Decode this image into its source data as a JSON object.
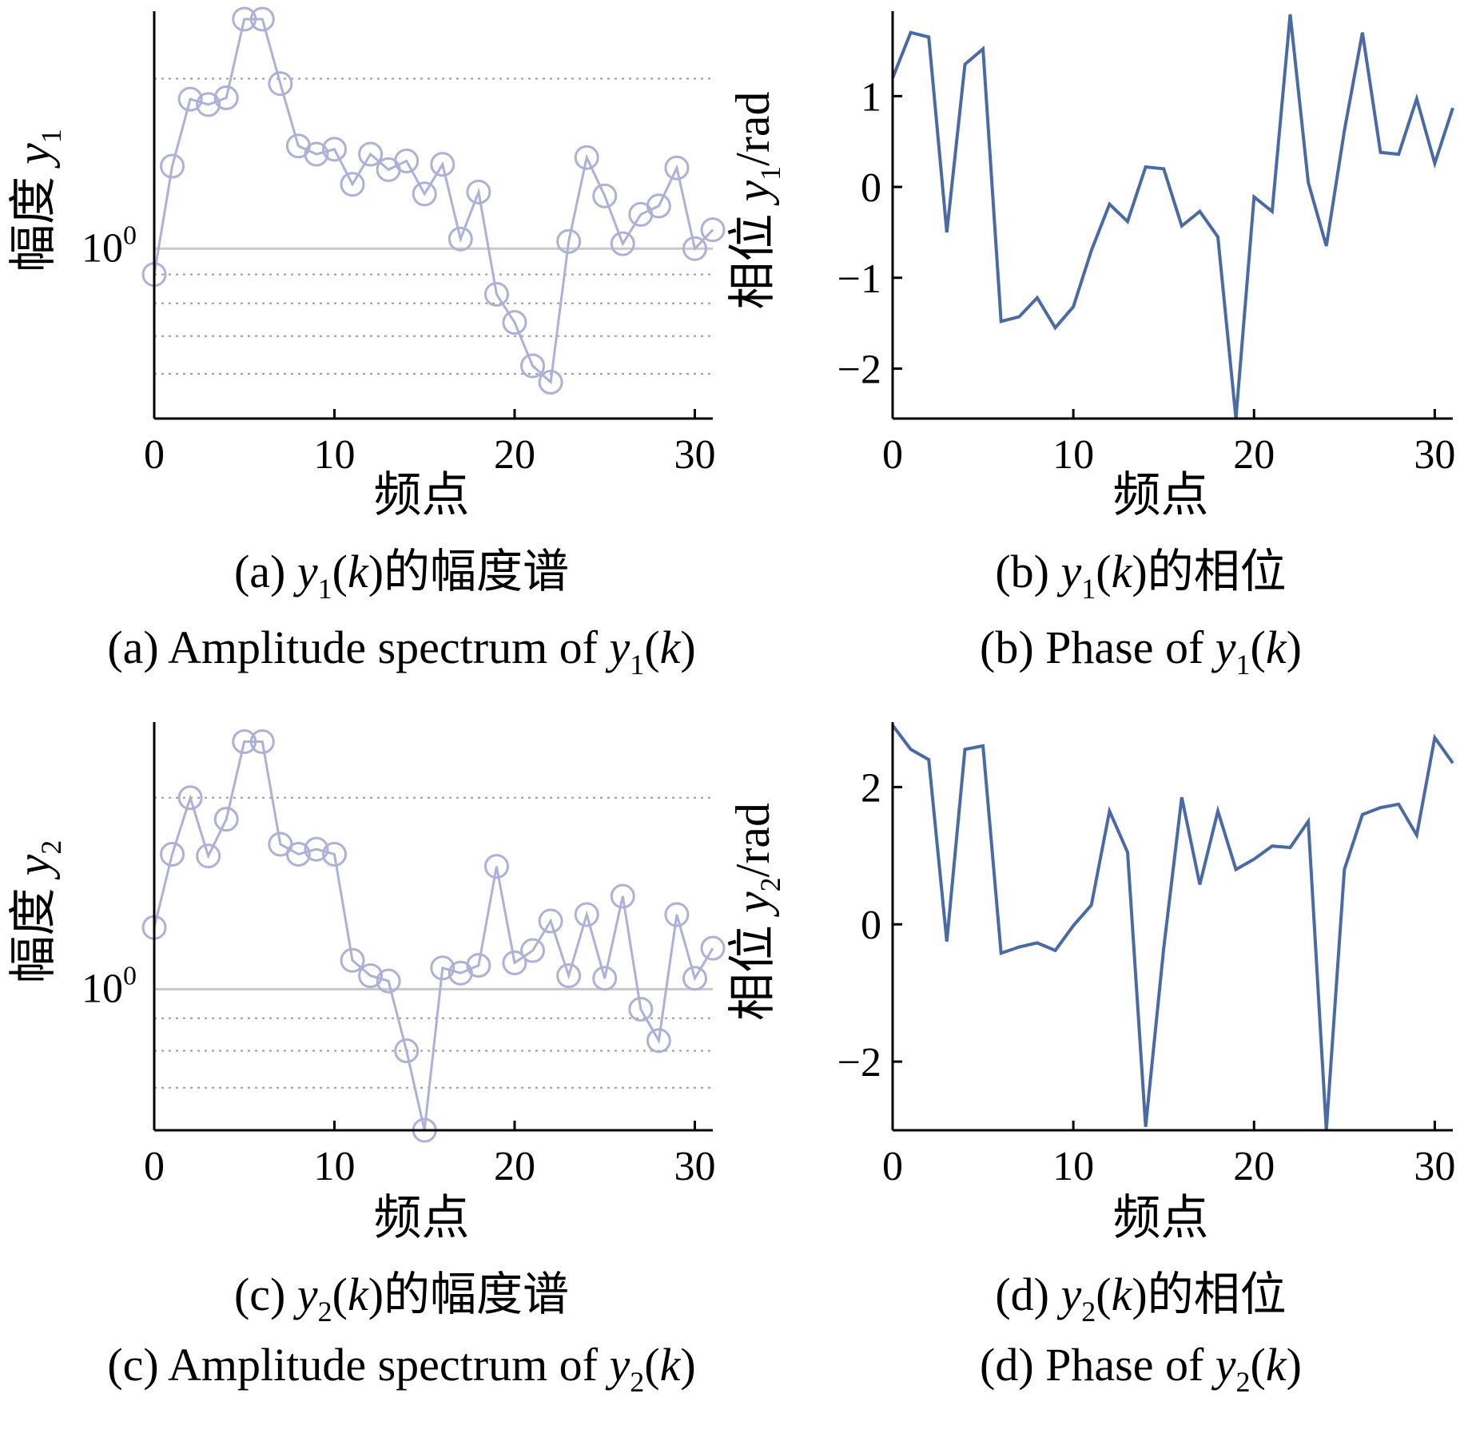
{
  "figure": {
    "panels": [
      {
        "id": "a",
        "caption_cn": {
          "prefix": "(a) ",
          "var": "y",
          "sub": "1",
          "arg": "(k)",
          "suffix": "的幅度谱"
        },
        "caption_en": {
          "prefix": "(a) Amplitude spectrum of ",
          "var": "y",
          "sub": "1",
          "arg": "(k)"
        },
        "ylabel": {
          "text": "幅度 ",
          "var": "y",
          "sub": "1",
          "unit": ""
        },
        "xlabel": "频点",
        "ytick_main": {
          "base": "10",
          "exp": "0"
        }
      },
      {
        "id": "b",
        "caption_cn": {
          "prefix": "(b) ",
          "var": "y",
          "sub": "1",
          "arg": "(k)",
          "suffix": "的相位"
        },
        "caption_en": {
          "prefix": "(b) Phase of ",
          "var": "y",
          "sub": "1",
          "arg": "(k)"
        },
        "ylabel": {
          "text": "相位 ",
          "var": "y",
          "sub": "1",
          "unit": "/rad"
        },
        "xlabel": "频点"
      },
      {
        "id": "c",
        "caption_cn": {
          "prefix": "(c) ",
          "var": "y",
          "sub": "2",
          "arg": "(k)",
          "suffix": "的幅度谱"
        },
        "caption_en": {
          "prefix": "(c) Amplitude spectrum of ",
          "var": "y",
          "sub": "2",
          "arg": "(k)"
        },
        "ylabel": {
          "text": "幅度 ",
          "var": "y",
          "sub": "2",
          "unit": ""
        },
        "xlabel": "频点",
        "ytick_main": {
          "base": "10",
          "exp": "0"
        }
      },
      {
        "id": "d",
        "caption_cn": {
          "prefix": "(d) ",
          "var": "y",
          "sub": "2",
          "arg": "(k)",
          "suffix": "的相位"
        },
        "caption_en": {
          "prefix": "(d) Phase of ",
          "var": "y",
          "sub": "2",
          "arg": "(k)"
        },
        "ylabel": {
          "text": "相位 ",
          "var": "y",
          "sub": "2",
          "unit": "/rad"
        },
        "xlabel": "频点"
      }
    ],
    "colors": {
      "amplitude": "#aeb0d8",
      "phase": "#4a6aa5",
      "grid": "#9a9a9a",
      "unity_line": "#c8c8c8",
      "axis": "#000000"
    }
  },
  "chart_data": [
    {
      "type": "line",
      "panel": "a",
      "marker": "circle",
      "yscale": "log",
      "xlim": [
        0,
        31
      ],
      "ylim": [
        0.5,
        2.6
      ],
      "xticks": [
        0,
        10,
        20,
        30
      ],
      "x": [
        0,
        1,
        2,
        3,
        4,
        5,
        6,
        7,
        8,
        9,
        10,
        11,
        12,
        13,
        14,
        15,
        16,
        17,
        18,
        19,
        20,
        21,
        22,
        23,
        24,
        25,
        26,
        27,
        28,
        29,
        30,
        31
      ],
      "values": [
        0.9,
        1.4,
        1.84,
        1.8,
        1.85,
        2.55,
        2.55,
        1.96,
        1.52,
        1.47,
        1.5,
        1.3,
        1.47,
        1.38,
        1.43,
        1.25,
        1.41,
        1.04,
        1.26,
        0.83,
        0.74,
        0.62,
        0.58,
        1.03,
        1.45,
        1.24,
        1.02,
        1.15,
        1.19,
        1.39,
        1.0,
        1.08
      ]
    },
    {
      "type": "line",
      "panel": "b",
      "xlim": [
        0,
        31
      ],
      "ylim": [
        -2.55,
        1.9
      ],
      "xticks": [
        0,
        10,
        20,
        30
      ],
      "yticks": [
        -2,
        -1,
        0,
        1
      ],
      "x": [
        0,
        1,
        2,
        3,
        4,
        5,
        6,
        7,
        8,
        9,
        10,
        11,
        12,
        13,
        14,
        15,
        16,
        17,
        18,
        19,
        20,
        21,
        22,
        23,
        24,
        25,
        26,
        27,
        28,
        29,
        30,
        31
      ],
      "values": [
        1.2,
        1.7,
        1.65,
        -0.5,
        1.35,
        1.52,
        -1.48,
        -1.43,
        -1.22,
        -1.55,
        -1.32,
        -0.7,
        -0.19,
        -0.38,
        0.22,
        0.2,
        -0.43,
        -0.27,
        -0.55,
        -2.55,
        -0.11,
        -0.27,
        1.9,
        0.05,
        -0.65,
        0.62,
        1.7,
        0.38,
        0.36,
        0.97,
        0.26,
        0.87
      ]
    },
    {
      "type": "line",
      "panel": "c",
      "marker": "circle",
      "yscale": "log",
      "xlim": [
        0,
        31
      ],
      "ylim": [
        0.6,
        2.6
      ],
      "xticks": [
        0,
        10,
        20,
        30
      ],
      "x": [
        0,
        1,
        2,
        3,
        4,
        5,
        6,
        7,
        8,
        9,
        10,
        11,
        12,
        13,
        14,
        15,
        16,
        17,
        18,
        19,
        20,
        21,
        22,
        23,
        24,
        25,
        26,
        27,
        28,
        29,
        30,
        31
      ],
      "values": [
        1.25,
        1.63,
        2.0,
        1.62,
        1.85,
        2.45,
        2.45,
        1.69,
        1.63,
        1.66,
        1.63,
        1.11,
        1.05,
        1.03,
        0.8,
        0.6,
        1.08,
        1.06,
        1.09,
        1.56,
        1.1,
        1.15,
        1.28,
        1.05,
        1.31,
        1.04,
        1.4,
        0.93,
        0.83,
        1.31,
        1.04,
        1.16
      ]
    },
    {
      "type": "line",
      "panel": "d",
      "xlim": [
        0,
        31
      ],
      "ylim": [
        -3.0,
        2.9
      ],
      "xticks": [
        0,
        10,
        20,
        30
      ],
      "yticks": [
        -2,
        0,
        2
      ],
      "x": [
        0,
        1,
        2,
        3,
        4,
        5,
        6,
        7,
        8,
        9,
        10,
        11,
        12,
        13,
        14,
        15,
        16,
        17,
        18,
        19,
        20,
        21,
        22,
        23,
        24,
        25,
        26,
        27,
        28,
        29,
        30,
        31
      ],
      "values": [
        2.9,
        2.55,
        2.4,
        -0.25,
        2.55,
        2.6,
        -0.42,
        -0.33,
        -0.27,
        -0.38,
        -0.02,
        0.28,
        1.65,
        1.05,
        -2.95,
        -0.35,
        1.85,
        0.58,
        1.65,
        0.8,
        0.95,
        1.14,
        1.12,
        1.5,
        -3.0,
        0.8,
        1.6,
        1.7,
        1.75,
        1.3,
        2.72,
        2.35
      ]
    }
  ]
}
